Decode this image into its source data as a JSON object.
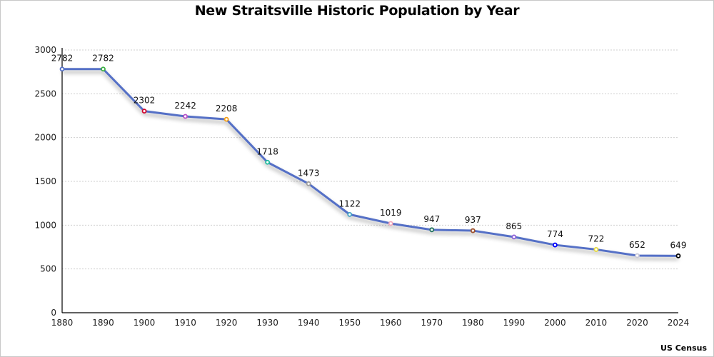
{
  "chart_data": {
    "type": "line",
    "title": "New Straitsville Historic Population by Year",
    "source": "US Census",
    "xlabel": "",
    "ylabel": "",
    "categories": [
      "1880",
      "1890",
      "1900",
      "1910",
      "1920",
      "1930",
      "1940",
      "1950",
      "1960",
      "1970",
      "1980",
      "1990",
      "2000",
      "2010",
      "2020",
      "2024"
    ],
    "series": [
      {
        "name": "Population",
        "color": "#5470c6",
        "values": [
          2782,
          2782,
          2302,
          2242,
          2208,
          1718,
          1473,
          1122,
          1019,
          947,
          937,
          865,
          774,
          722,
          652,
          649
        ],
        "marker_colors": [
          "#5470c6",
          "#3cb043",
          "#d2042d",
          "#b84fc7",
          "#f39c12",
          "#1abc9c",
          "#9e9e9e",
          "#3a9ec2",
          "#f4a7b9",
          "#1e6f5c",
          "#a0522d",
          "#8a5cd6",
          "#0000ff",
          "#e6d93c",
          "#c8c8d8",
          "#000000"
        ]
      }
    ],
    "yticks": [
      0,
      500,
      1000,
      1500,
      2000,
      2500,
      3000
    ],
    "ylim": [
      0,
      3000
    ],
    "grid": true,
    "legend": "none"
  }
}
